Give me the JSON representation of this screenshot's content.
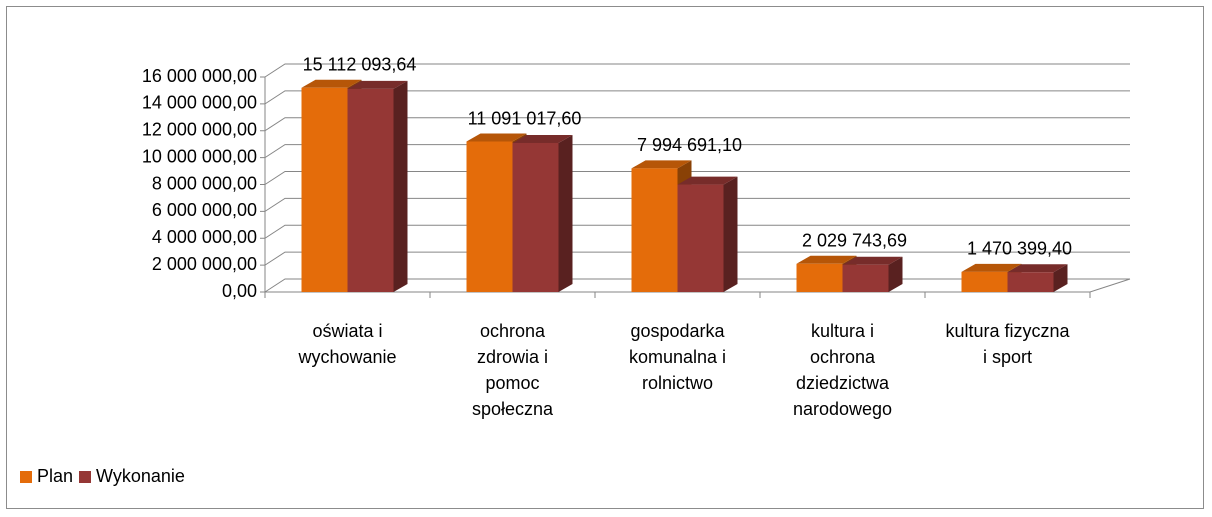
{
  "chart_data": {
    "type": "bar3d",
    "categories": [
      "oświata i wychowanie",
      "ochrona zdrowia i pomoc społeczna",
      "gospodarka komunalna i rolnictwo",
      "kultura i ochrona dziedzictwa narodowego",
      "kultura fizyczna i sport"
    ],
    "series": [
      {
        "name": "Plan",
        "color": "#e46c0a",
        "values": [
          15200000,
          11200000,
          9200000,
          2100000,
          1500000
        ]
      },
      {
        "name": "Wykonanie",
        "color": "#953735",
        "values": [
          15112093.64,
          11091017.6,
          7994691.1,
          2029743.69,
          1470399.4
        ],
        "value_labels": [
          "15 112 093,64",
          "11 091 017,60",
          "7 994 691,10",
          "2 029 743,69",
          "1 470 399,40"
        ]
      }
    ],
    "ylim": [
      0,
      16000000
    ],
    "yticks": [
      {
        "value": 0,
        "label": "0,00"
      },
      {
        "value": 2000000,
        "label": "2 000 000,00"
      },
      {
        "value": 4000000,
        "label": "4 000 000,00"
      },
      {
        "value": 6000000,
        "label": "6 000 000,00"
      },
      {
        "value": 8000000,
        "label": "8 000 000,00"
      },
      {
        "value": 10000000,
        "label": "10 000 000,00"
      },
      {
        "value": 12000000,
        "label": "12 000 000,00"
      },
      {
        "value": 14000000,
        "label": "14 000 000,00"
      },
      {
        "value": 16000000,
        "label": "16 000 000,00"
      }
    ],
    "grid": true,
    "legend": "bottom-left"
  }
}
